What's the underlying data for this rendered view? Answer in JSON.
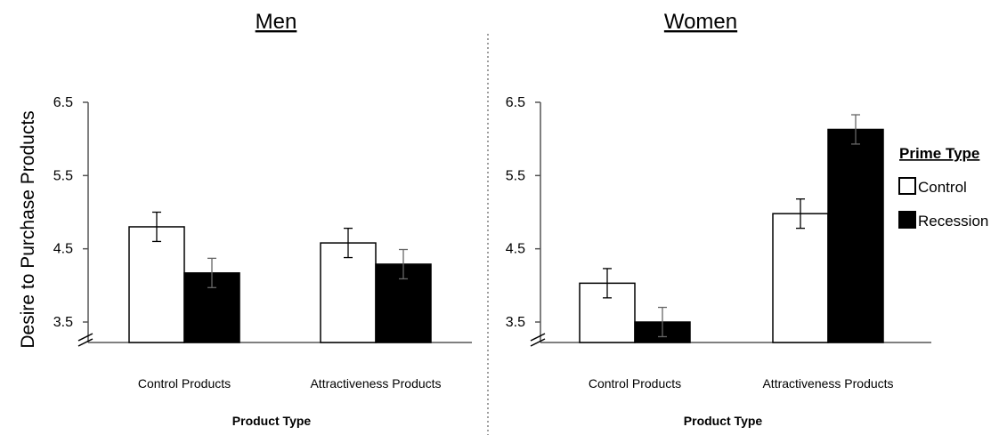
{
  "chart_data": [
    {
      "type": "bar",
      "title": "Men",
      "xlabel": "Product Type",
      "ylabel": "Desire to Purchase Products",
      "categories": [
        "Control Products",
        "Attractiveness Products"
      ],
      "series": [
        {
          "name": "Control",
          "values": [
            4.8,
            4.58
          ],
          "errors": [
            0.2,
            0.2
          ],
          "color": "#ffffff"
        },
        {
          "name": "Recession",
          "values": [
            4.17,
            4.29
          ],
          "errors": [
            0.2,
            0.2
          ],
          "color": "#000000"
        }
      ],
      "ylim": [
        3.5,
        6.5
      ],
      "yticks": [
        "3.5",
        "4.5",
        "5.5",
        "6.5"
      ],
      "axis_break": true,
      "grid": false
    },
    {
      "type": "bar",
      "title": "Women",
      "xlabel": "Product Type",
      "ylabel": "",
      "categories": [
        "Control Products",
        "Attractiveness Products"
      ],
      "series": [
        {
          "name": "Control",
          "values": [
            4.03,
            4.98
          ],
          "errors": [
            0.2,
            0.2
          ],
          "color": "#ffffff"
        },
        {
          "name": "Recession",
          "values": [
            3.5,
            6.13
          ],
          "errors": [
            0.2,
            0.2
          ],
          "color": "#000000"
        }
      ],
      "ylim": [
        3.5,
        6.5
      ],
      "yticks": [
        "3.5",
        "4.5",
        "5.5",
        "6.5"
      ],
      "axis_break": true,
      "grid": false,
      "legend": {
        "title": "Prime Type",
        "placement": "right",
        "items": [
          "Control",
          "Recession"
        ]
      }
    }
  ]
}
